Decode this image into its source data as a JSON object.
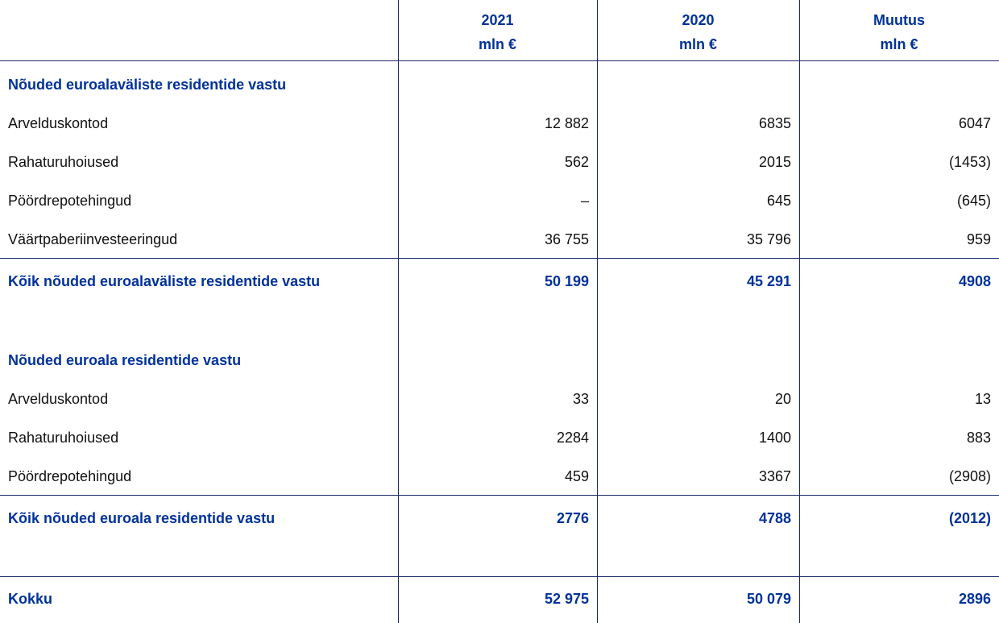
{
  "header": {
    "columns": [
      {
        "title": "2021",
        "unit": "mln €"
      },
      {
        "title": "2020",
        "unit": "mln €"
      },
      {
        "title": "Muutus",
        "unit": "mln €"
      }
    ]
  },
  "sections": [
    {
      "title": "Nõuded euroalaväliste residentide vastu",
      "rows": [
        {
          "label": "Arvelduskontod",
          "values": [
            "12 882",
            "6835",
            "6047"
          ]
        },
        {
          "label": "Rahaturuhoiused",
          "values": [
            "562",
            "2015",
            "(1453)"
          ]
        },
        {
          "label": "Pöördrepotehingud",
          "values": [
            "–",
            "645",
            "(645)"
          ]
        },
        {
          "label": "Väärtpaberiinvesteeringud",
          "values": [
            "36 755",
            "35 796",
            "959"
          ]
        }
      ],
      "total": {
        "label": "Kõik nõuded euroalaväliste residentide vastu",
        "values": [
          "50 199",
          "45 291",
          "4908"
        ]
      }
    },
    {
      "title": "Nõuded euroala residentide vastu",
      "rows": [
        {
          "label": "Arvelduskontod",
          "values": [
            "33",
            "20",
            "13"
          ]
        },
        {
          "label": "Rahaturuhoiused",
          "values": [
            "2284",
            "1400",
            "883"
          ]
        },
        {
          "label": "Pöördrepotehingud",
          "values": [
            "459",
            "3367",
            "(2908)"
          ]
        }
      ],
      "total": {
        "label": "Kõik nõuded euroala residentide vastu",
        "values": [
          "2776",
          "4788",
          "(2012)"
        ]
      }
    }
  ],
  "grand_total": {
    "label": "Kokku",
    "values": [
      "52 975",
      "50 079",
      "2896"
    ]
  }
}
